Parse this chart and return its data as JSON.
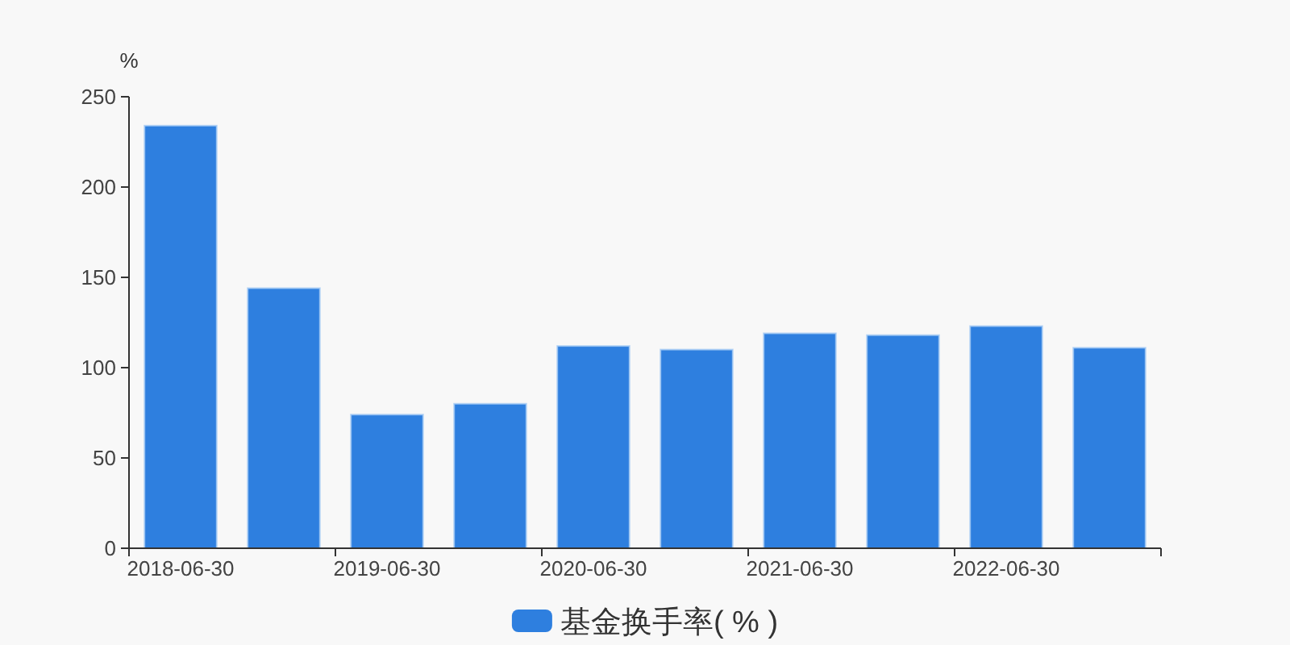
{
  "chart_data": {
    "type": "bar",
    "ylabel": "%",
    "categories": [
      "2018-06-30",
      null,
      "2019-06-30",
      null,
      "2020-06-30",
      null,
      "2021-06-30",
      null,
      "2022-06-30",
      null
    ],
    "series": [
      {
        "name": "基金换手率( % )",
        "color": "#2e7fdf",
        "values": [
          234,
          144,
          74,
          80,
          112,
          110,
          119,
          118,
          123,
          111
        ]
      }
    ],
    "ylim": [
      0,
      250
    ],
    "yticks": [
      0,
      50,
      100,
      150,
      200,
      250
    ],
    "grid": false,
    "legend": "bottom"
  }
}
